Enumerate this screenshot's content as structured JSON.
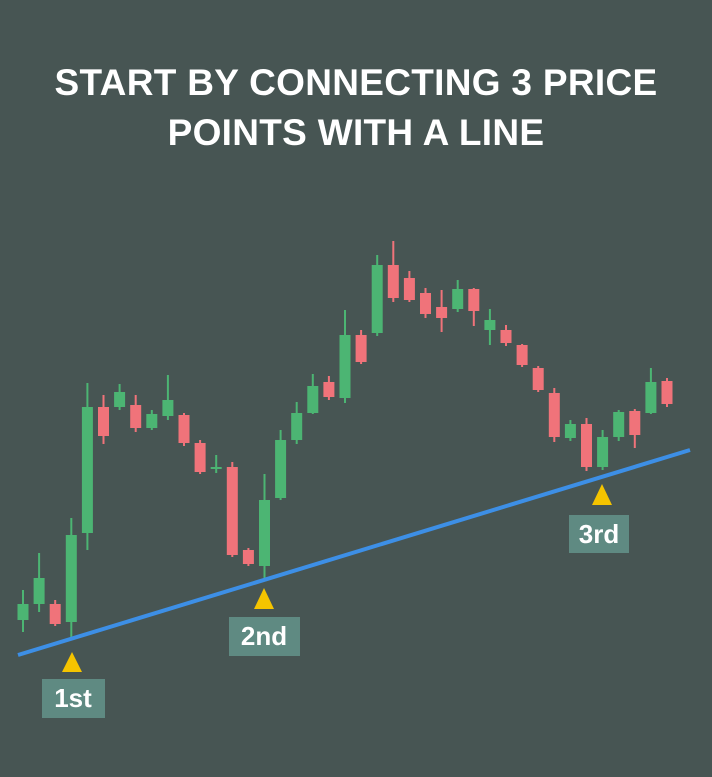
{
  "chart_data": {
    "type": "candlestick",
    "title": "START BY CONNECTING 3 PRICE POINTS WITH A LINE",
    "annotations": [
      "1st",
      "2nd",
      "3rd"
    ],
    "open": [
      80,
      96,
      96,
      78,
      167,
      293,
      293,
      295,
      272,
      284,
      285,
      257,
      231,
      233,
      150,
      134,
      202,
      260,
      287,
      318,
      302,
      365,
      367,
      435,
      422,
      407,
      393,
      391,
      411,
      370,
      370,
      355,
      332,
      307,
      262,
      276,
      233,
      263,
      289,
      287,
      319
    ],
    "high": [
      110,
      147,
      100,
      182,
      317,
      305,
      316,
      305,
      290,
      325,
      287,
      260,
      245,
      238,
      152,
      226,
      270,
      298,
      326,
      324,
      390,
      370,
      445,
      459,
      429,
      412,
      410,
      420,
      412,
      391,
      375,
      356,
      334,
      312,
      280,
      282,
      270,
      290,
      291,
      332,
      322
    ],
    "low": [
      68,
      88,
      74,
      62,
      150,
      256,
      290,
      268,
      270,
      280,
      254,
      226,
      227,
      143,
      134,
      122,
      200,
      256,
      286,
      300,
      297,
      336,
      364,
      398,
      398,
      382,
      368,
      388,
      374,
      355,
      354,
      333,
      308,
      258,
      259,
      229,
      230,
      259,
      252,
      286,
      293
    ],
    "close": [
      96,
      122,
      76,
      165,
      293,
      264,
      308,
      272,
      286,
      300,
      257,
      228,
      233,
      145,
      136,
      200,
      260,
      287,
      314,
      303,
      365,
      338,
      435,
      402,
      400,
      386,
      382,
      411,
      389,
      380,
      357,
      335,
      310,
      263,
      276,
      233,
      263,
      288,
      265,
      318,
      296
    ],
    "up_color": "#4cb573",
    "down_color": "#f0737a",
    "ylim": [
      0,
      700
    ]
  }
}
